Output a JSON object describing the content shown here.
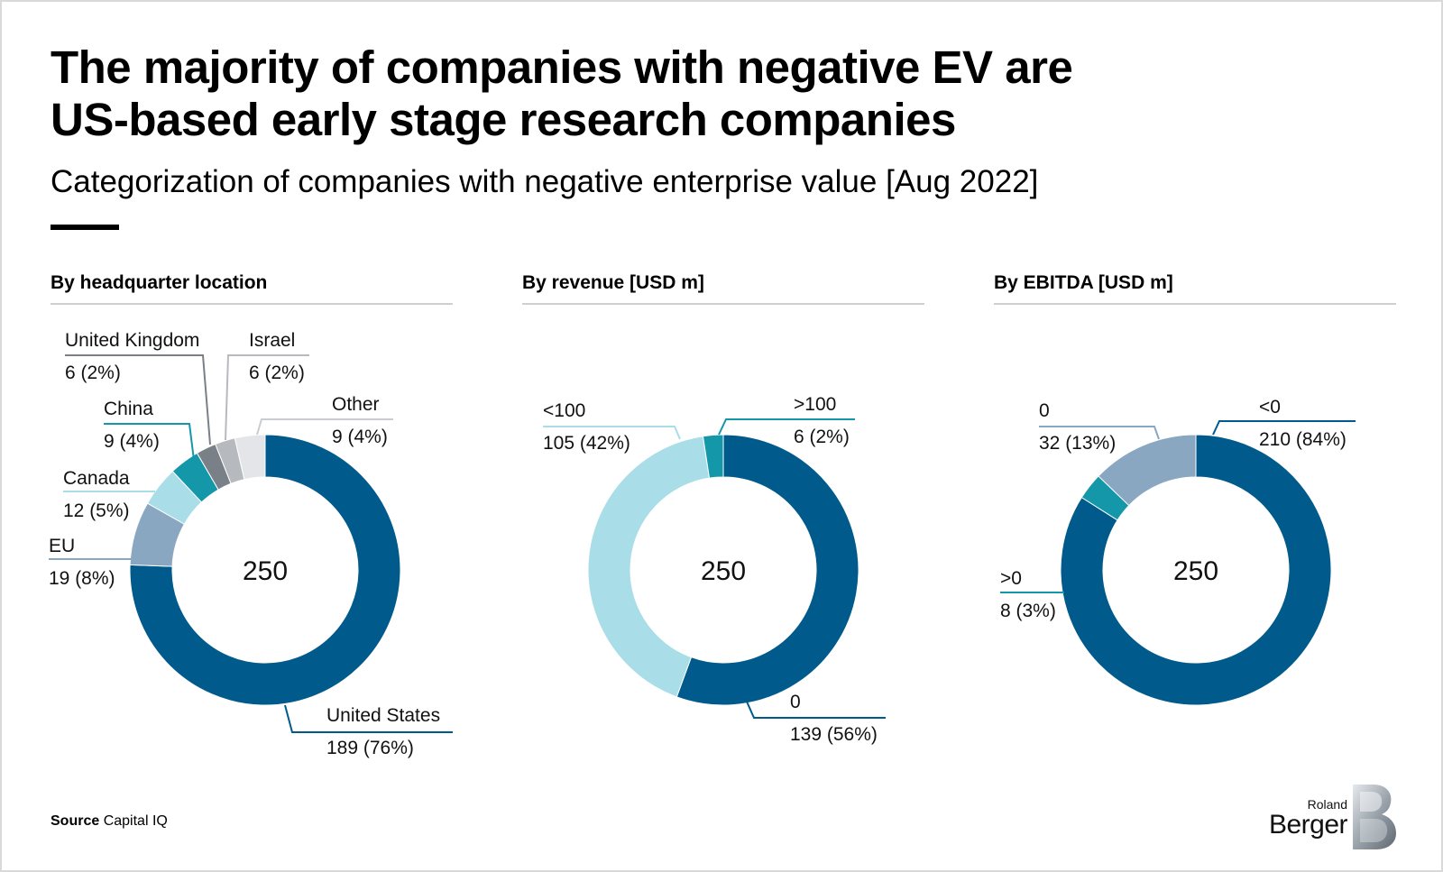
{
  "header": {
    "title_line1": "The majority of companies with negative EV are",
    "title_line2": "US-based early stage research companies",
    "subtitle": "Categorization of companies with negative enterprise value [Aug 2022]"
  },
  "colors": {
    "dark_blue": "#005a8c",
    "grey_blue": "#8aa7c2",
    "light_cyan": "#a9dde8",
    "teal": "#1497a9",
    "dark_grey": "#7a8088",
    "mid_grey": "#b6babf",
    "light_grey": "#e3e5e8"
  },
  "chart_data": [
    {
      "type": "pie",
      "donut": true,
      "title": "By headquarter location",
      "total_label": "250",
      "slices": [
        {
          "name": "United States",
          "value": 189,
          "label": "189 (76%)",
          "color": "#005a8c"
        },
        {
          "name": "EU",
          "value": 19,
          "label": "19 (8%)",
          "color": "#8aa7c2"
        },
        {
          "name": "Canada",
          "value": 12,
          "label": "12 (5%)",
          "color": "#a9dde8"
        },
        {
          "name": "China",
          "value": 9,
          "label": "9 (4%)",
          "color": "#1497a9"
        },
        {
          "name": "United Kingdom",
          "value": 6,
          "label": "6 (2%)",
          "color": "#7a8088"
        },
        {
          "name": "Israel",
          "value": 6,
          "label": "6 (2%)",
          "color": "#b6babf"
        },
        {
          "name": "Other",
          "value": 9,
          "label": "9 (4%)",
          "color": "#e3e5e8"
        }
      ]
    },
    {
      "type": "pie",
      "donut": true,
      "title": "By revenue [USD m]",
      "total_label": "250",
      "slices": [
        {
          "name": "0",
          "value": 139,
          "label": "139 (56%)",
          "color": "#005a8c"
        },
        {
          "name": "<100",
          "value": 105,
          "label": "105 (42%)",
          "color": "#a9dde8"
        },
        {
          "name": ">100",
          "value": 6,
          "label": "6 (2%)",
          "color": "#1497a9"
        }
      ]
    },
    {
      "type": "pie",
      "donut": true,
      "title": "By EBITDA [USD m]",
      "total_label": "250",
      "slices": [
        {
          "name": "<0",
          "value": 210,
          "label": "210 (84%)",
          "color": "#005a8c"
        },
        {
          "name": ">0",
          "value": 8,
          "label": "8 (3%)",
          "color": "#1497a9"
        },
        {
          "name": "0",
          "value": 32,
          "label": "32 (13%)",
          "color": "#8aa7c2"
        }
      ]
    }
  ],
  "footer": {
    "source_label": "Source",
    "source_value": "Capital IQ"
  },
  "logo": {
    "line1": "Roland",
    "line2": "Berger"
  }
}
